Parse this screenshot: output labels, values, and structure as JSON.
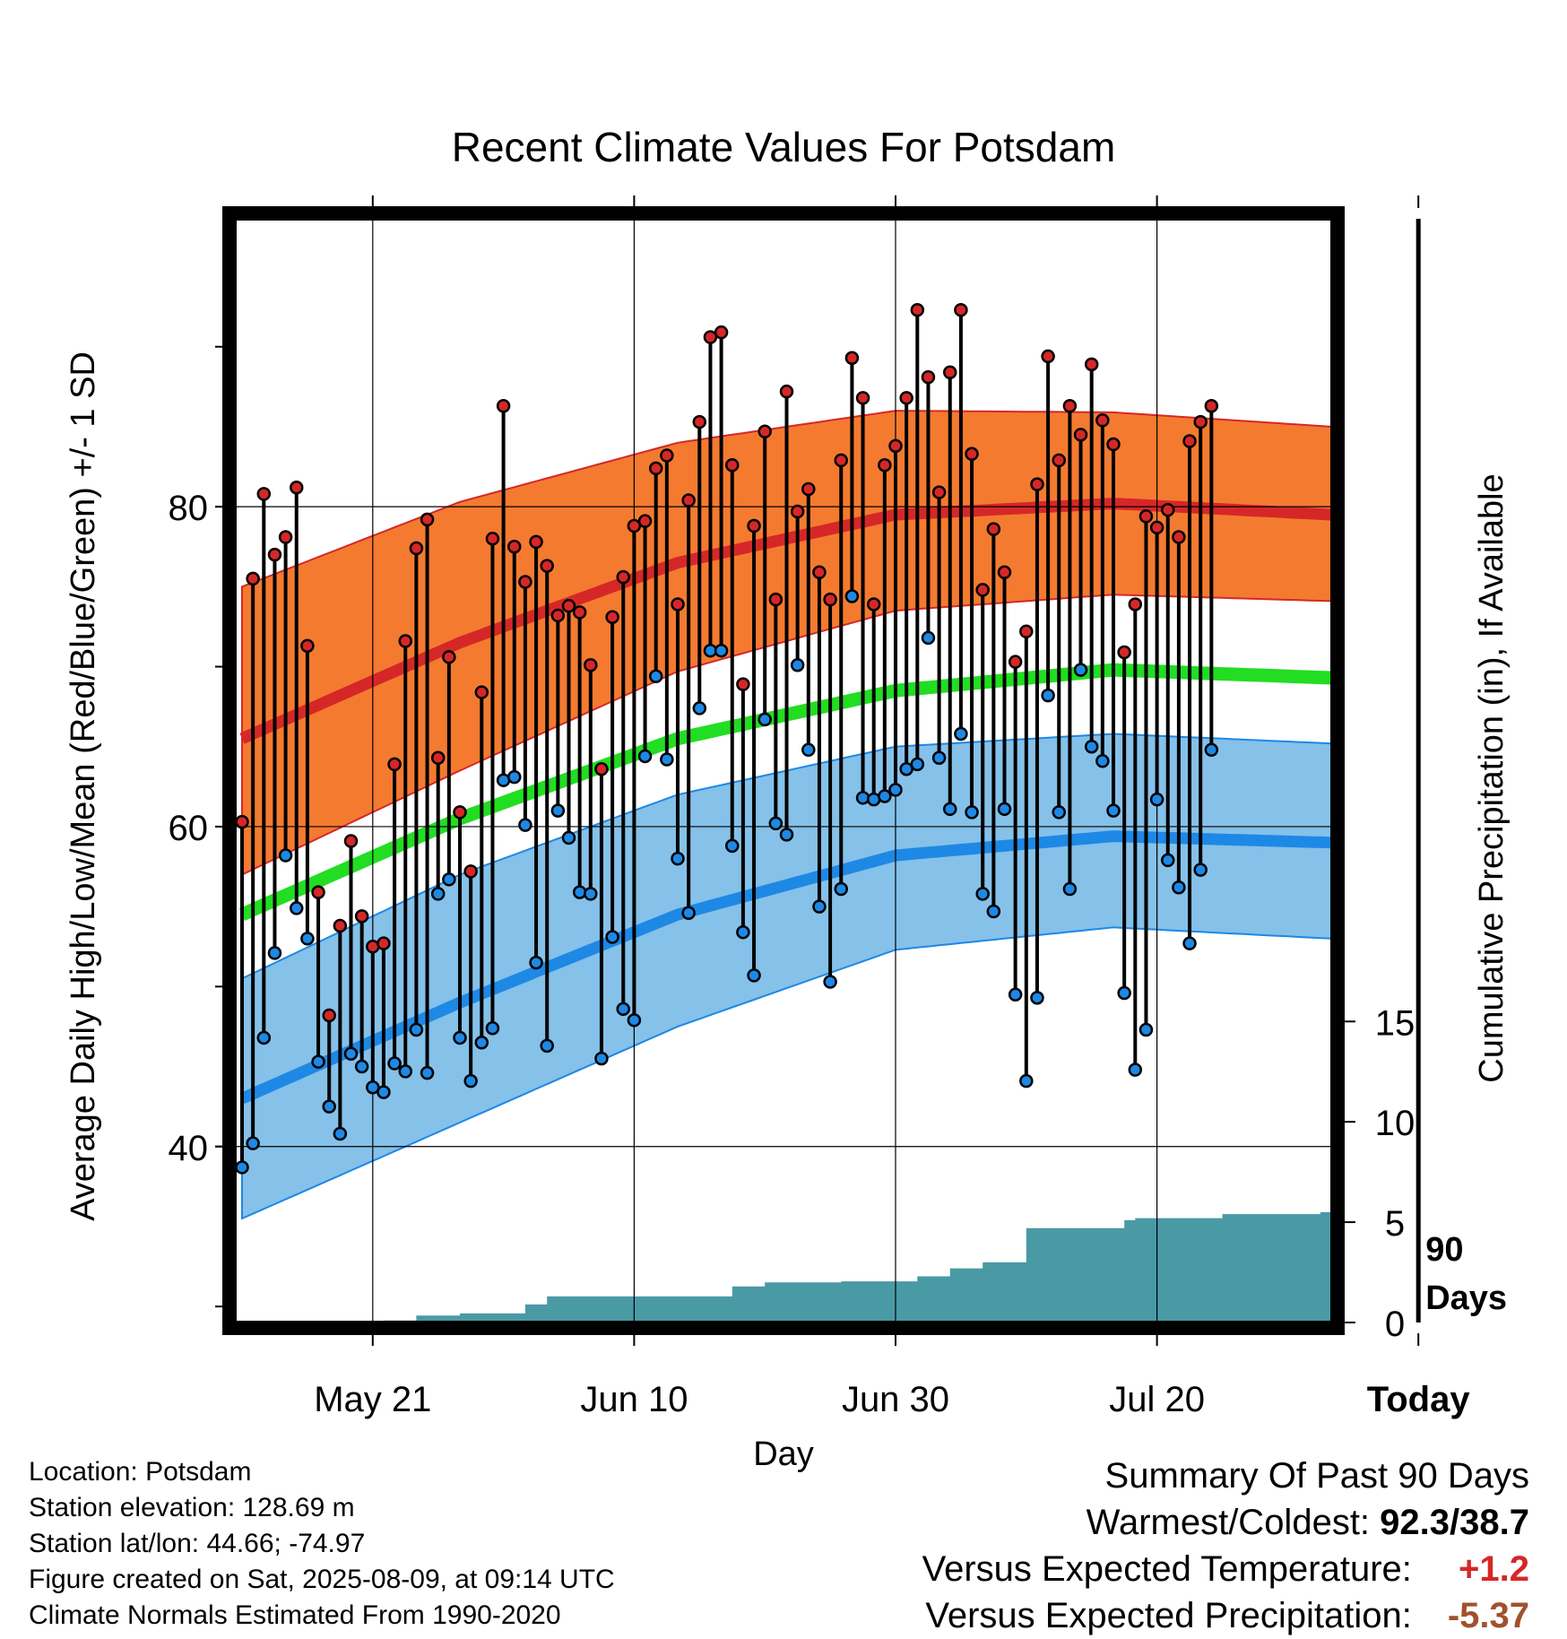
{
  "chart_data": {
    "type": "line",
    "title": "Recent Climate Values For Potsdam",
    "xlabel": "Day",
    "ylabel": "Average Daily High/Low/Mean (Red/Blue/Green) +/- 1 SD",
    "y2label": "Cumulative Precipitation (in), If Available",
    "x_tick_labels": [
      "May 21",
      "Jun 10",
      "Jun 30",
      "Jul 20",
      "Today"
    ],
    "y_ticks": [
      40,
      60,
      80
    ],
    "ylim": [
      29,
      98
    ],
    "y2_ticks": [
      0,
      5,
      10,
      15
    ],
    "y2lim": [
      0,
      55
    ],
    "today_marker_label": "90\nDays",
    "series_colors": {
      "high": "#d62728",
      "low": "#1e88e5",
      "mean": "#22dd22",
      "precip": "#4a9aa5",
      "high_band": "#f47a30",
      "low_band": "#85c1e9"
    },
    "normals": {
      "day_offset": [
        -90,
        -70,
        -50,
        -30,
        -10,
        10,
        20
      ],
      "high_mean": [
        65.5,
        71.5,
        76.5,
        79.5,
        80.2,
        79.5,
        78.1
      ],
      "high_sd_upper": [
        75.0,
        80.3,
        84.0,
        86.0,
        85.9,
        85.0,
        84.2
      ],
      "high_sd_lower": [
        57.0,
        63.5,
        69.7,
        73.5,
        74.5,
        74.1,
        72.9
      ],
      "mean": [
        54.5,
        60.5,
        65.5,
        68.5,
        69.8,
        69.3,
        67.8
      ],
      "low_mean": [
        43.0,
        49.0,
        54.5,
        58.2,
        59.4,
        59.0,
        57.3
      ],
      "low_sd_upper": [
        50.5,
        57.0,
        62.0,
        65.0,
        65.8,
        65.2,
        63.8
      ],
      "low_sd_lower": [
        35.5,
        41.5,
        47.5,
        52.3,
        53.7,
        53.0,
        51.0
      ]
    },
    "daily": {
      "day_offset_start": -90,
      "high": [
        60.3,
        75.5,
        80.8,
        77.0,
        78.1,
        81.2,
        71.3,
        55.9,
        48.2,
        53.8,
        59.1,
        54.4,
        52.5,
        52.7,
        63.9,
        71.6,
        77.4,
        79.2,
        64.3,
        70.6,
        60.9,
        57.2,
        68.4,
        78.0,
        86.3,
        77.5,
        75.3,
        77.8,
        76.3,
        73.2,
        73.8,
        73.4,
        70.1,
        63.6,
        73.1,
        75.6,
        78.8,
        79.1,
        82.4,
        83.2,
        73.9,
        80.4,
        85.3,
        90.6,
        90.9,
        82.6,
        68.9,
        78.8,
        84.7,
        74.2,
        87.2,
        79.7,
        81.1,
        75.9,
        74.2,
        82.9,
        89.3,
        86.8,
        73.9,
        82.6,
        83.8,
        86.8,
        92.3,
        88.1,
        80.9,
        88.4,
        92.3,
        83.3,
        74.8,
        78.6,
        75.9,
        70.3,
        72.2,
        81.4,
        89.4,
        82.9,
        86.3,
        84.5,
        88.9,
        85.4,
        83.9,
        70.9,
        73.9,
        79.4,
        78.7,
        79.8,
        78.1,
        84.1,
        85.3,
        86.3
      ],
      "low": [
        38.7,
        40.2,
        46.8,
        52.1,
        58.2,
        54.9,
        53.0,
        45.3,
        42.5,
        40.8,
        45.8,
        45.0,
        43.7,
        43.4,
        45.2,
        44.7,
        47.3,
        44.6,
        55.8,
        56.7,
        46.8,
        44.1,
        46.5,
        47.4,
        62.9,
        63.1,
        60.1,
        51.5,
        46.3,
        61.0,
        59.3,
        55.9,
        55.8,
        45.5,
        53.1,
        48.6,
        47.9,
        64.4,
        69.4,
        64.2,
        58.0,
        54.6,
        67.4,
        71.0,
        71.0,
        58.8,
        53.4,
        50.7,
        66.7,
        60.2,
        59.5,
        70.1,
        64.8,
        55.0,
        50.3,
        56.1,
        74.4,
        61.8,
        61.7,
        61.9,
        62.3,
        63.6,
        63.9,
        71.8,
        64.3,
        61.1,
        65.8,
        60.9,
        55.8,
        54.7,
        61.1,
        49.5,
        44.1,
        49.3,
        68.2,
        60.9,
        56.1,
        69.8,
        65.0,
        64.1,
        61.0,
        49.6,
        44.8,
        47.3,
        61.7,
        57.9,
        56.2,
        52.7,
        57.3,
        64.8
      ]
    },
    "precip": {
      "day_offset": [
        -90,
        -80,
        -77,
        -74,
        -70,
        -67,
        -64,
        -62,
        -60,
        -58,
        -55,
        -52,
        -51,
        -48,
        -45,
        -42,
        -40,
        -38,
        -35,
        -34,
        -31,
        -30,
        -28,
        -26,
        -25,
        -22,
        -20,
        -18,
        -14,
        -12,
        -10,
        -9,
        -8,
        -5,
        -4,
        -2,
        0,
        9
      ],
      "value": [
        0,
        0,
        0.1,
        0.35,
        0.45,
        0.45,
        0.9,
        1.3,
        1.3,
        1.3,
        1.3,
        1.3,
        1.3,
        1.3,
        1.8,
        2.0,
        2.0,
        2.0,
        2.05,
        2.05,
        2.05,
        2.05,
        2.3,
        2.3,
        2.7,
        3.0,
        3.0,
        4.7,
        4.7,
        4.7,
        4.7,
        5.1,
        5.2,
        5.2,
        5.2,
        5.2,
        5.4,
        5.5
      ]
    }
  },
  "footer": {
    "location": "Location: Potsdam",
    "elevation": "Station elevation: 128.69 m",
    "latlon": "Station lat/lon: 44.66; -74.97",
    "created": "Figure created on Sat, 2025-08-09, at 09:14 UTC",
    "normals": "Climate Normals Estimated From 1990-2020"
  },
  "summary": {
    "title": "Summary Of Past 90 Days",
    "warmest_label": "Warmest/Coldest:",
    "warmest_value": "92.3/38.7",
    "temp_label": "Versus Expected Temperature:",
    "temp_value": "+1.2",
    "temp_color": "#d62728",
    "precip_label": "Versus Expected Precipitation:",
    "precip_value": "-5.37",
    "precip_color": "#a0522d"
  }
}
